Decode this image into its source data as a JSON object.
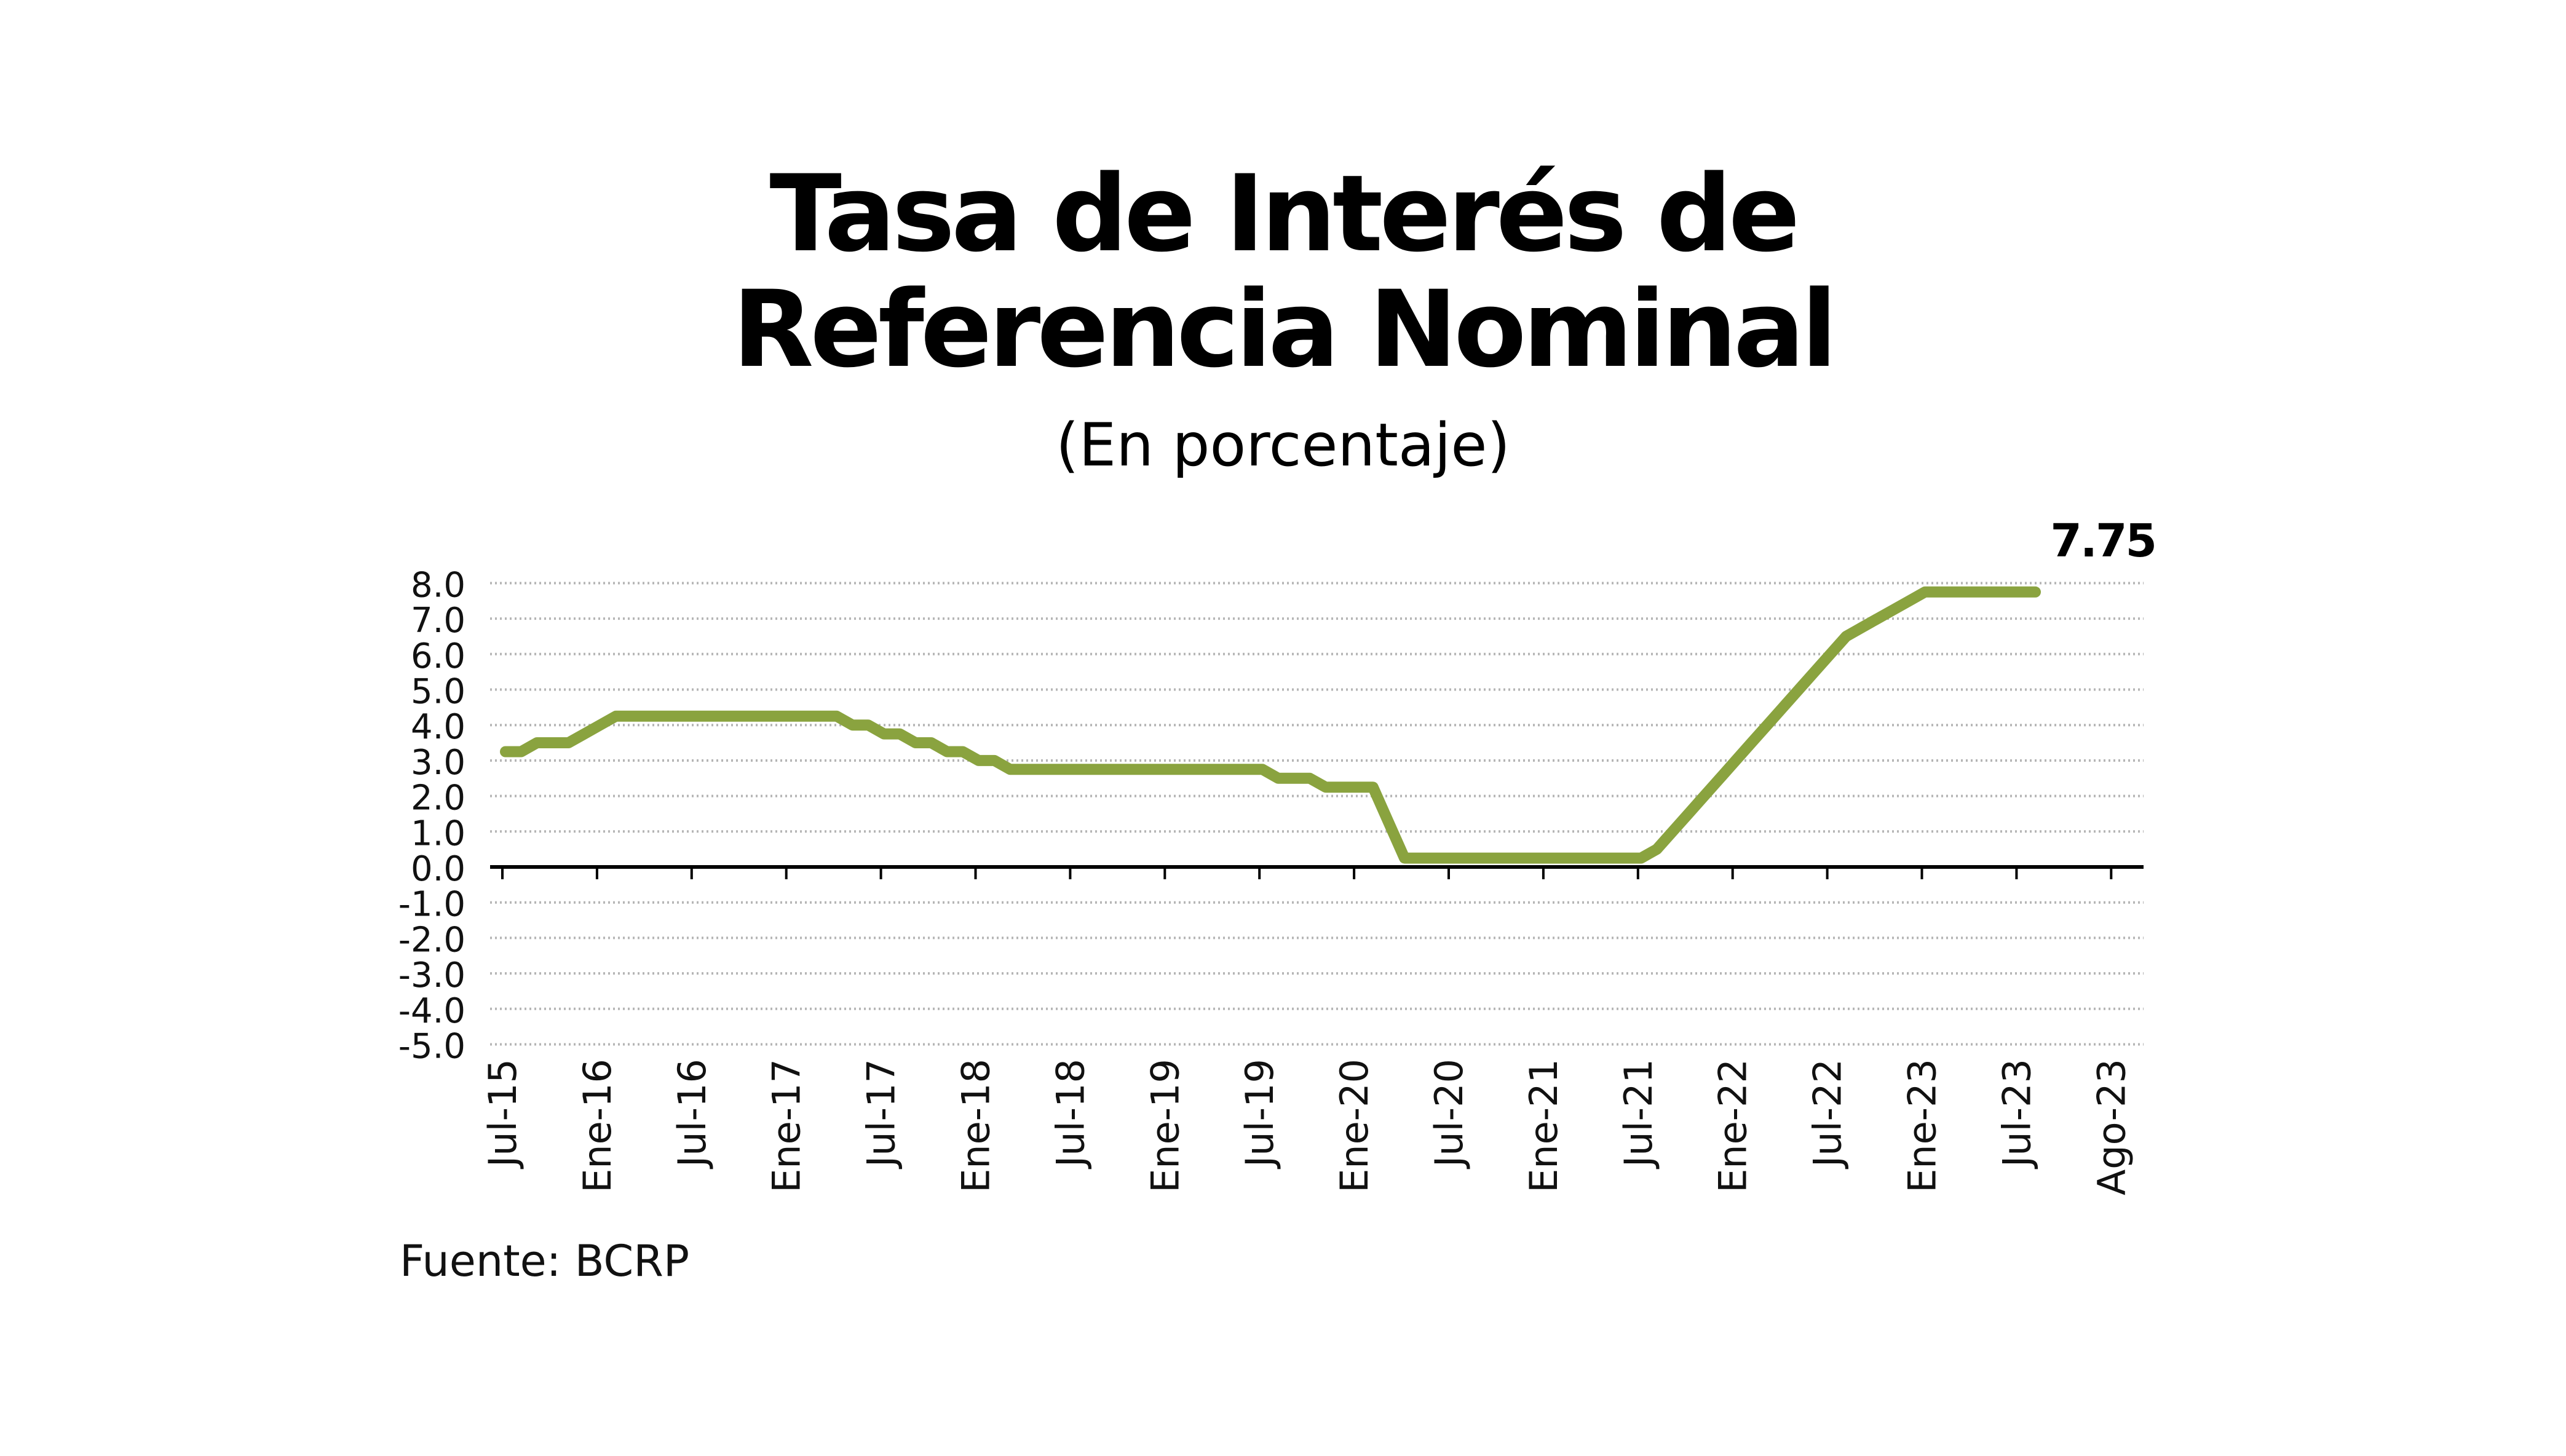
{
  "chart_data": {
    "type": "line",
    "title": "Tasa de Interés de Referencia Nominal",
    "title_lines": [
      "Tasa de Interés de",
      "Referencia Nominal"
    ],
    "subtitle": "(En porcentaje)",
    "source": "Fuente: BCRP",
    "xlabel": "",
    "ylabel": "",
    "ylim": [
      -5,
      8
    ],
    "yticks": [
      "8.0",
      "7.0",
      "6.0",
      "5.0",
      "4.0",
      "3.0",
      "2.0",
      "1.0",
      "0.0",
      "-1.0",
      "-2.0",
      "-3.0",
      "-4.0",
      "-5.0"
    ],
    "xtick_labels": [
      "Jul-15",
      "Ene-16",
      "Jul-16",
      "Ene-17",
      "Jul-17",
      "Ene-18",
      "Jul-18",
      "Ene-19",
      "Jul-19",
      "Ene-20",
      "Jul-20",
      "Ene-21",
      "Jul-21",
      "Ene-22",
      "Jul-22",
      "Ene-23",
      "Jul-23",
      "Ago-23"
    ],
    "grid": true,
    "line_color": "#8aa33f",
    "end_label": "7.75",
    "series": [
      {
        "start": "Jul-15",
        "frequency": "monthly",
        "values": [
          3.25,
          3.25,
          3.5,
          3.5,
          3.5,
          3.75,
          4.0,
          4.25,
          4.25,
          4.25,
          4.25,
          4.25,
          4.25,
          4.25,
          4.25,
          4.25,
          4.25,
          4.25,
          4.25,
          4.25,
          4.25,
          4.25,
          4.0,
          4.0,
          3.75,
          3.75,
          3.5,
          3.5,
          3.25,
          3.25,
          3.0,
          3.0,
          2.75,
          2.75,
          2.75,
          2.75,
          2.75,
          2.75,
          2.75,
          2.75,
          2.75,
          2.75,
          2.75,
          2.75,
          2.75,
          2.75,
          2.75,
          2.75,
          2.75,
          2.5,
          2.5,
          2.5,
          2.25,
          2.25,
          2.25,
          2.25,
          1.25,
          0.25,
          0.25,
          0.25,
          0.25,
          0.25,
          0.25,
          0.25,
          0.25,
          0.25,
          0.25,
          0.25,
          0.25,
          0.25,
          0.25,
          0.25,
          0.25,
          0.5,
          1.0,
          1.5,
          2.0,
          2.5,
          3.0,
          3.5,
          4.0,
          4.5,
          5.0,
          5.5,
          6.0,
          6.5,
          6.75,
          7.0,
          7.25,
          7.5,
          7.75,
          7.75,
          7.75,
          7.75,
          7.75,
          7.75,
          7.75,
          7.75
        ]
      }
    ]
  }
}
